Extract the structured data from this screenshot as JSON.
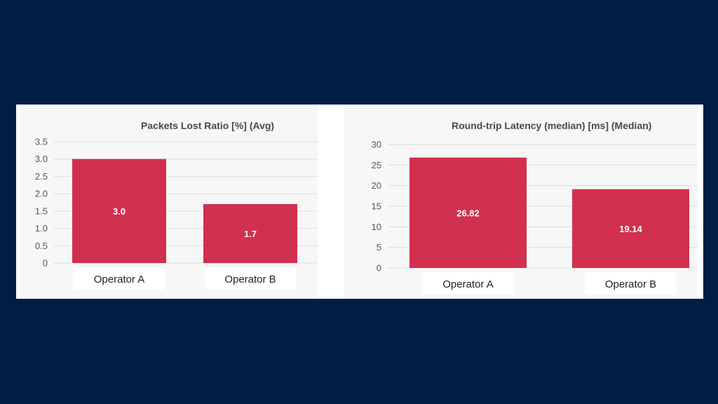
{
  "colors": {
    "background": "#001d45",
    "bar": "#d1304f",
    "grid": "#dddddd"
  },
  "chart_data": [
    {
      "type": "bar",
      "title": "Packets Lost Ratio [%] (Avg)",
      "categories": [
        "Operator A",
        "Operator B"
      ],
      "values": [
        3.0,
        1.7
      ],
      "data_labels": [
        "3.0",
        "1.7"
      ],
      "ylim": [
        0,
        3.5
      ],
      "yticks": [
        "0",
        "0.5",
        "1.0",
        "1.5",
        "2.0",
        "2.5",
        "3.0",
        "3.5"
      ],
      "grid": true,
      "xlabel": "",
      "ylabel": ""
    },
    {
      "type": "bar",
      "title": "Round-trip Latency (median) [ms] (Median)",
      "categories": [
        "Operator A",
        "Operator B"
      ],
      "values": [
        26.82,
        19.14
      ],
      "data_labels": [
        "26.82",
        "19.14"
      ],
      "ylim": [
        0,
        30
      ],
      "yticks": [
        "0",
        "5",
        "10",
        "15",
        "20",
        "25",
        "30"
      ],
      "grid": true,
      "xlabel": "",
      "ylabel": ""
    }
  ]
}
